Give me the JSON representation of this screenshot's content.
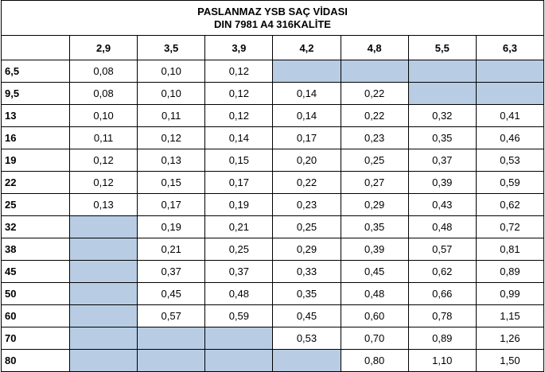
{
  "header": {
    "title": "PASLANMAZ YSB SAÇ VİDASI",
    "subtitle": "DIN 7981 A4 316KALİTE"
  },
  "table": {
    "columns": [
      "2,9",
      "3,5",
      "3,9",
      "4,2",
      "4,8",
      "5,5",
      "6,3"
    ],
    "row_labels": [
      "6,5",
      "9,5",
      "13",
      "16",
      "19",
      "22",
      "25",
      "32",
      "38",
      "45",
      "50",
      "60",
      "70",
      "80"
    ],
    "rows": [
      [
        "0,08",
        "0,10",
        "0,12",
        null,
        null,
        null,
        null
      ],
      [
        "0,08",
        "0,10",
        "0,12",
        "0,14",
        "0,22",
        null,
        null
      ],
      [
        "0,10",
        "0,11",
        "0,12",
        "0,14",
        "0,22",
        "0,32",
        "0,41"
      ],
      [
        "0,11",
        "0,12",
        "0,14",
        "0,17",
        "0,23",
        "0,35",
        "0,46"
      ],
      [
        "0,12",
        "0,13",
        "0,15",
        "0,20",
        "0,25",
        "0,37",
        "0,53"
      ],
      [
        "0,12",
        "0,15",
        "0,17",
        "0,22",
        "0,27",
        "0,39",
        "0,59"
      ],
      [
        "0,13",
        "0,17",
        "0,19",
        "0,23",
        "0,29",
        "0,43",
        "0,62"
      ],
      [
        null,
        "0,19",
        "0,21",
        "0,25",
        "0,35",
        "0,48",
        "0,72"
      ],
      [
        null,
        "0,21",
        "0,25",
        "0,29",
        "0,39",
        "0,57",
        "0,81"
      ],
      [
        null,
        "0,37",
        "0,37",
        "0,33",
        "0,45",
        "0,62",
        "0,89"
      ],
      [
        null,
        "0,45",
        "0,48",
        "0,35",
        "0,48",
        "0,66",
        "0,99"
      ],
      [
        null,
        "0,57",
        "0,59",
        "0,45",
        "0,60",
        "0,78",
        "1,15"
      ],
      [
        null,
        null,
        null,
        "0,53",
        "0,70",
        "0,89",
        "1,26"
      ],
      [
        null,
        null,
        null,
        null,
        "0,80",
        "1,10",
        "1,50"
      ]
    ]
  }
}
